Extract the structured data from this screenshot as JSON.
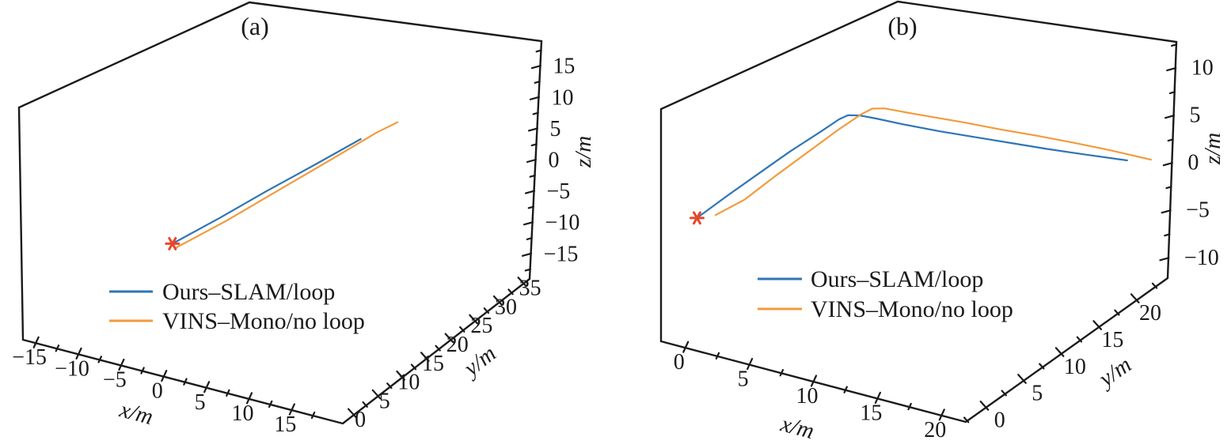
{
  "page": {
    "background": "#ffffff"
  },
  "chart_data": [
    {
      "type": "line",
      "projection": "3d",
      "panel": "a",
      "title": "(a)",
      "grid": false,
      "legend": {
        "position": "lower-left-inside",
        "entries": [
          {
            "label": "Ours–SLAM/loop",
            "series": "ours"
          },
          {
            "label": "VINS–Mono/no loop",
            "series": "vins"
          }
        ]
      },
      "axes": {
        "x": {
          "label": "x/m",
          "ticks": [
            -15,
            -10,
            -5,
            0,
            5,
            10,
            15
          ],
          "range": [
            -16.5,
            21
          ]
        },
        "y": {
          "label": "y/m",
          "ticks": [
            0,
            5,
            10,
            15,
            20,
            25,
            30,
            35
          ],
          "range": [
            -2.3,
            36.2
          ]
        },
        "z": {
          "label": "z/m",
          "ticks": [
            15,
            10,
            5,
            0,
            -5,
            -10,
            -15
          ],
          "range": [
            -19,
            19
          ]
        }
      },
      "series": [
        {
          "key": "ours",
          "name": "Ours–SLAM/loop",
          "color": "#2e75b6",
          "xyz": [
            [
              -1,
              0,
              0.5
            ],
            [
              0.3,
              7.5,
              0.6
            ],
            [
              1.5,
              15,
              0.8
            ],
            [
              2.8,
              22.5,
              0.9
            ],
            [
              4,
              30,
              1
            ]
          ]
        },
        {
          "key": "vins",
          "name": "VINS–Mono/no loop",
          "color": "#f29b3d",
          "xyz": [
            [
              -0.7,
              0.3,
              -0.2
            ],
            [
              0.8,
              8,
              0
            ],
            [
              2.2,
              16.5,
              0.4
            ],
            [
              3.8,
              25,
              1
            ],
            [
              5,
              31.5,
              1.5
            ],
            [
              6,
              34,
              2
            ]
          ]
        }
      ],
      "start_marker": {
        "xyz": [
          -1,
          0,
          0.5
        ],
        "color": "#e8472b",
        "shape": "asterisk"
      }
    },
    {
      "type": "line",
      "projection": "3d",
      "panel": "b",
      "title": "(b)",
      "grid": false,
      "legend": {
        "position": "lower-left-inside",
        "entries": [
          {
            "label": "Ours–SLAM/loop",
            "series": "ours"
          },
          {
            "label": "VINS–Mono/no loop",
            "series": "vins"
          }
        ]
      },
      "axes": {
        "x": {
          "label": "x/m",
          "ticks": [
            0,
            5,
            10,
            15,
            20
          ],
          "range": [
            -1.9,
            21.9
          ]
        },
        "y": {
          "label": "y/m",
          "ticks": [
            0,
            5,
            10,
            15,
            20
          ],
          "range": [
            -2.7,
            24.1
          ]
        },
        "z": {
          "label": "z/m",
          "ticks": [
            10,
            5,
            0,
            -5,
            -10
          ],
          "range": [
            -12.1,
            12.8
          ]
        }
      },
      "series": [
        {
          "key": "ours",
          "name": "Ours–SLAM/loop",
          "color": "#2e75b6",
          "xyz": [
            [
              -1,
              0,
              -0.3
            ],
            [
              0.2,
              2,
              1.4
            ],
            [
              1.4,
              4,
              3
            ],
            [
              2.6,
              6,
              4.6
            ],
            [
              3.8,
              8,
              6
            ],
            [
              4.6,
              9,
              7
            ],
            [
              5,
              9.5,
              7.3
            ],
            [
              5.6,
              10,
              7.2
            ],
            [
              6.5,
              10.7,
              6.8
            ],
            [
              8,
              11.8,
              6.1
            ],
            [
              10,
              13.2,
              5.3
            ],
            [
              12,
              14.6,
              4.6
            ],
            [
              14,
              16,
              3.9
            ],
            [
              16,
              17.4,
              3.2
            ],
            [
              18,
              18.9,
              2.5
            ],
            [
              20.3,
              20.8,
              1.6
            ]
          ]
        },
        {
          "key": "vins",
          "name": "VINS–Mono/no loop",
          "color": "#f29b3d",
          "xyz": [
            [
              0.2,
              0.4,
              0.2
            ],
            [
              1.2,
              2.5,
              1
            ],
            [
              2.4,
              4.5,
              2.8
            ],
            [
              3.6,
              6.5,
              4.5
            ],
            [
              4.8,
              8.7,
              6.2
            ],
            [
              5.6,
              10.2,
              7.2
            ],
            [
              6,
              11,
              7.5
            ],
            [
              6.6,
              11.6,
              7.4
            ],
            [
              7.5,
              12.3,
              7
            ],
            [
              9,
              13.4,
              6.4
            ],
            [
              11,
              14.9,
              5.6
            ],
            [
              13,
              16.3,
              4.8
            ],
            [
              15,
              17.8,
              4
            ],
            [
              17,
              19.2,
              3.2
            ],
            [
              19,
              20.8,
              2.2
            ],
            [
              21,
              22.8,
              0.8
            ]
          ]
        }
      ],
      "start_marker": {
        "xyz": [
          -1,
          0,
          -0.3
        ],
        "color": "#e8472b",
        "shape": "asterisk"
      }
    }
  ]
}
